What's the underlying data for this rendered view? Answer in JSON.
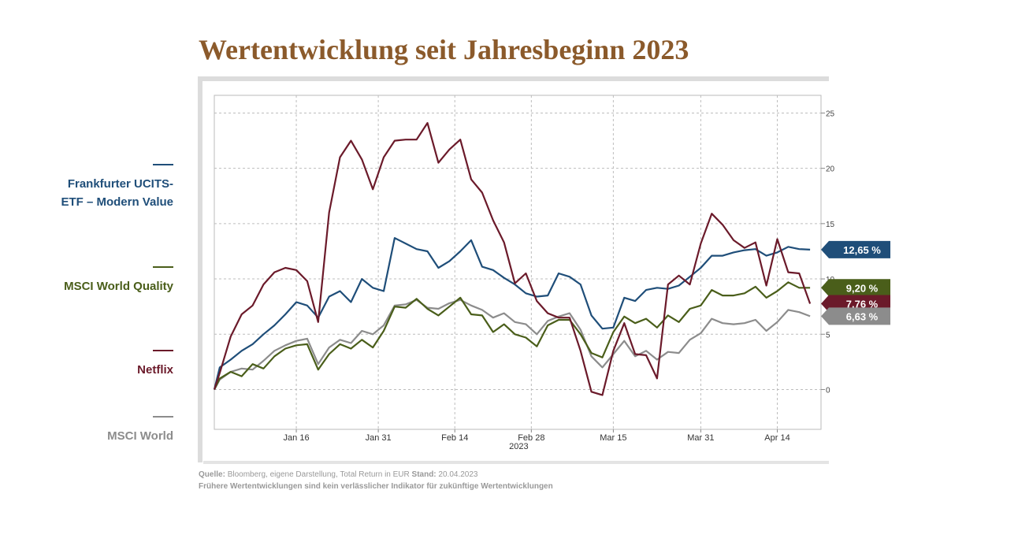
{
  "chart_data": {
    "type": "line",
    "title": "Wertentwicklung seit Jahresbeginn 2023",
    "xlabel": "2023",
    "x": [
      1,
      2,
      4,
      6,
      8,
      10,
      12,
      14,
      16,
      18,
      20,
      22,
      24,
      26,
      28,
      30,
      32,
      34,
      36,
      38,
      40,
      42,
      44,
      46,
      48,
      50,
      52,
      54,
      56,
      58,
      60,
      62,
      64,
      66,
      68,
      70,
      72,
      74,
      76,
      78,
      80,
      82,
      84,
      86,
      88,
      90,
      92,
      94,
      96,
      98,
      100,
      102,
      104,
      106,
      108,
      110
    ],
    "xlim": [
      1,
      112
    ],
    "xticks": [
      {
        "value": 16,
        "label": "Jan 16"
      },
      {
        "value": 31,
        "label": "Jan 31"
      },
      {
        "value": 45,
        "label": "Feb 14"
      },
      {
        "value": 59,
        "label": "Feb 28"
      },
      {
        "value": 74,
        "label": "Mar 15"
      },
      {
        "value": 90,
        "label": "Mar 31"
      },
      {
        "value": 104,
        "label": "Apr 14"
      }
    ],
    "ylim": [
      -3.6,
      26.6
    ],
    "yticks": [
      0,
      5,
      10,
      15,
      20,
      25
    ],
    "grid": true,
    "series": [
      {
        "name": "Frankfurter UCITS-ETF – Modern Value",
        "color": "#1f4e79",
        "end_label": "12,65 %",
        "values": [
          0,
          2.0,
          2.7,
          3.5,
          4.1,
          5.0,
          5.8,
          6.8,
          7.9,
          7.6,
          6.5,
          8.4,
          8.9,
          7.9,
          10.0,
          9.2,
          8.9,
          13.7,
          13.2,
          12.7,
          12.5,
          11.0,
          11.6,
          12.5,
          13.5,
          11.1,
          10.8,
          10.1,
          9.5,
          8.7,
          8.4,
          8.5,
          10.5,
          10.2,
          9.5,
          6.7,
          5.5,
          5.6,
          8.3,
          8.0,
          9.0,
          9.2,
          9.1,
          9.4,
          10.2,
          11.0,
          12.1,
          12.1,
          12.4,
          12.6,
          12.7,
          12.1,
          12.4,
          12.9,
          12.7,
          12.65
        ]
      },
      {
        "name": "MSCI World Quality",
        "color": "#4a5e1a",
        "end_label": "9,20 %",
        "values": [
          0,
          1.0,
          1.6,
          1.2,
          2.3,
          1.9,
          3.0,
          3.7,
          4.0,
          4.1,
          1.8,
          3.2,
          4.1,
          3.7,
          4.5,
          3.8,
          5.3,
          7.5,
          7.4,
          8.2,
          7.3,
          6.7,
          7.5,
          8.3,
          6.8,
          6.7,
          5.2,
          5.9,
          5.0,
          4.7,
          3.9,
          5.8,
          6.3,
          6.3,
          5.0,
          3.3,
          2.9,
          5.2,
          6.6,
          6.0,
          6.4,
          5.6,
          6.7,
          6.1,
          7.3,
          7.6,
          9.0,
          8.5,
          8.5,
          8.7,
          9.3,
          8.3,
          8.9,
          9.7,
          9.2,
          9.2
        ]
      },
      {
        "name": "Netflix",
        "color": "#6b1a2a",
        "end_label": "7,76 %",
        "values": [
          0,
          1.5,
          4.8,
          6.8,
          7.6,
          9.5,
          10.6,
          11.0,
          10.8,
          9.8,
          6.1,
          16,
          21,
          22.5,
          20.8,
          18.1,
          21,
          22.5,
          22.6,
          22.6,
          24.1,
          20.5,
          21.7,
          22.6,
          19,
          17.8,
          15.3,
          13.3,
          9.6,
          10.5,
          8,
          6.9,
          6.5,
          6.5,
          3.5,
          -0.2,
          -0.5,
          3.5,
          6,
          3.2,
          3.1,
          1,
          9.5,
          10.3,
          9.5,
          13.2,
          15.9,
          14.9,
          13.5,
          12.8,
          13.3,
          9.4,
          13.6,
          10.6,
          10.5,
          7.76
        ]
      },
      {
        "name": "MSCI World",
        "color": "#8c8c8c",
        "end_label": "6,63 %",
        "values": [
          0,
          0.9,
          1.6,
          1.9,
          1.8,
          2.6,
          3.5,
          4.0,
          4.4,
          4.6,
          2.3,
          3.8,
          4.5,
          4.2,
          5.3,
          5.0,
          5.8,
          7.6,
          7.7,
          8.1,
          7.4,
          7.3,
          7.8,
          8.1,
          7.6,
          7.2,
          6.5,
          6.9,
          6.1,
          5.9,
          5.0,
          6.2,
          6.6,
          6.9,
          5.4,
          3.0,
          2.0,
          3.2,
          4.4,
          3.0,
          3.5,
          2.7,
          3.4,
          3.3,
          4.5,
          5.1,
          6.4,
          6.0,
          5.9,
          6.0,
          6.3,
          5.3,
          6.1,
          7.2,
          7.0,
          6.63
        ]
      }
    ],
    "source": {
      "label": "Quelle:",
      "text": "Bloomberg, eigene Darstellung, Total Return in EUR",
      "date_label": "Stand:",
      "date": "20.04.2023"
    },
    "disclaimer": "Frühere Wertentwicklungen sind kein verlässlicher Indikator für zukünftige Wertentwicklungen"
  }
}
